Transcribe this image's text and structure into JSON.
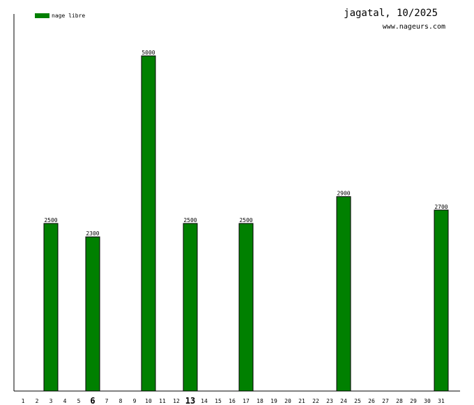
{
  "chart_data": {
    "type": "bar",
    "title": "jagatal, 10/2025",
    "subtitle": "www.nageurs.com",
    "legend": {
      "position": "top-left",
      "entries": [
        {
          "label": "nage libre",
          "color": "#008000"
        }
      ]
    },
    "categories": [
      "1",
      "2",
      "3",
      "4",
      "5",
      "6",
      "7",
      "8",
      "9",
      "10",
      "11",
      "12",
      "13",
      "14",
      "15",
      "16",
      "17",
      "18",
      "19",
      "20",
      "21",
      "22",
      "23",
      "24",
      "25",
      "26",
      "27",
      "28",
      "29",
      "30",
      "31"
    ],
    "emphasized_categories": [
      "6",
      "13"
    ],
    "series": [
      {
        "name": "nage libre",
        "color": "#008000",
        "values": [
          null,
          null,
          2500,
          null,
          null,
          2300,
          null,
          null,
          null,
          5000,
          null,
          null,
          2500,
          null,
          null,
          null,
          2500,
          null,
          null,
          null,
          null,
          null,
          null,
          2900,
          null,
          null,
          null,
          null,
          null,
          null,
          2700
        ]
      }
    ],
    "ylim": [
      0,
      5000
    ],
    "grid": false
  }
}
